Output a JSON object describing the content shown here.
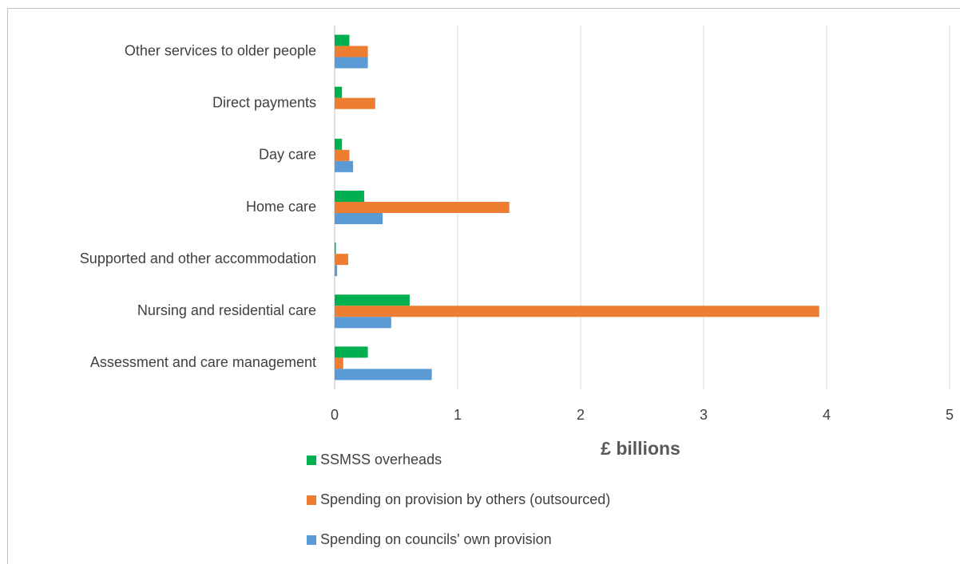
{
  "chart_data": {
    "type": "bar",
    "orientation": "horizontal",
    "x_label": "£ billions",
    "categories": [
      "Other services to older people",
      "Direct payments",
      "Day care",
      "Home care",
      "Supported and other accommodation",
      "Nursing and residential care",
      "Assessment and care management"
    ],
    "series": [
      {
        "name": "SSMSS overheads",
        "color": "#00b050",
        "values": [
          0.12,
          0.06,
          0.06,
          0.24,
          0.01,
          0.61,
          0.27
        ]
      },
      {
        "name": "Spending on provision by others (outsourced)",
        "color": "#ed7d31",
        "values": [
          0.27,
          0.33,
          0.12,
          1.42,
          0.11,
          3.94,
          0.07
        ]
      },
      {
        "name": "Spending on councils' own provision",
        "color": "#5b9bd5",
        "values": [
          0.27,
          0,
          0.15,
          0.39,
          0.02,
          0.46,
          0.79
        ]
      }
    ],
    "xlim": [
      0,
      5
    ],
    "xticks": [
      0,
      1,
      2,
      3,
      4,
      5
    ],
    "grid": true
  }
}
